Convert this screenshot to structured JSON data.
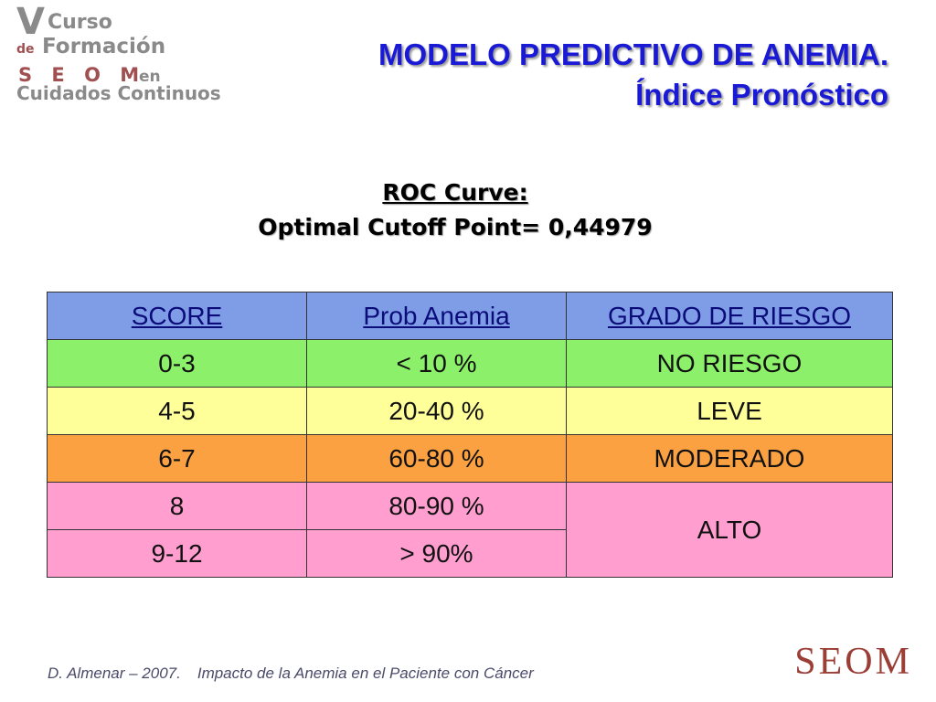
{
  "logo": {
    "roman": "V",
    "curso": "Curso",
    "de": "de",
    "formacion": "Formación",
    "seom": "S E O M",
    "en": "en",
    "cuidados": "Cuidados Continuos"
  },
  "title": {
    "line1": "MODELO PREDICTIVO DE ANEMIA.",
    "line2": "Índice Pronóstico",
    "color": "#1a1ad6"
  },
  "roc": {
    "heading": "ROC Curve:",
    "cutoff": "Optimal Cutoff Point= 0,44979"
  },
  "table": {
    "headers": [
      "SCORE",
      "Prob Anemia",
      "GRADO DE RIESGO"
    ],
    "rows": [
      {
        "score": "0-3",
        "prob": "< 10 %",
        "grade": "NO RIESGO"
      },
      {
        "score": "4-5",
        "prob": "20-40 %",
        "grade": "LEVE"
      },
      {
        "score": "6-7",
        "prob": "60-80 %",
        "grade": "MODERADO"
      },
      {
        "score": "8",
        "prob": "80-90 %",
        "grade": "ALTO"
      },
      {
        "score": "9-12",
        "prob": "> 90%",
        "grade": "ALTO"
      }
    ],
    "colors": {
      "header": "#7f9de6",
      "no_riesgo": "#8cf06a",
      "leve": "#ffff9a",
      "moderado": "#fba142",
      "alto": "#ff9ecf"
    }
  },
  "footer": {
    "author": "D. Almenar – 2007.",
    "subject": "Impacto de la Anemia en el Paciente con Cáncer"
  },
  "brand": {
    "seom": "SEOM"
  }
}
